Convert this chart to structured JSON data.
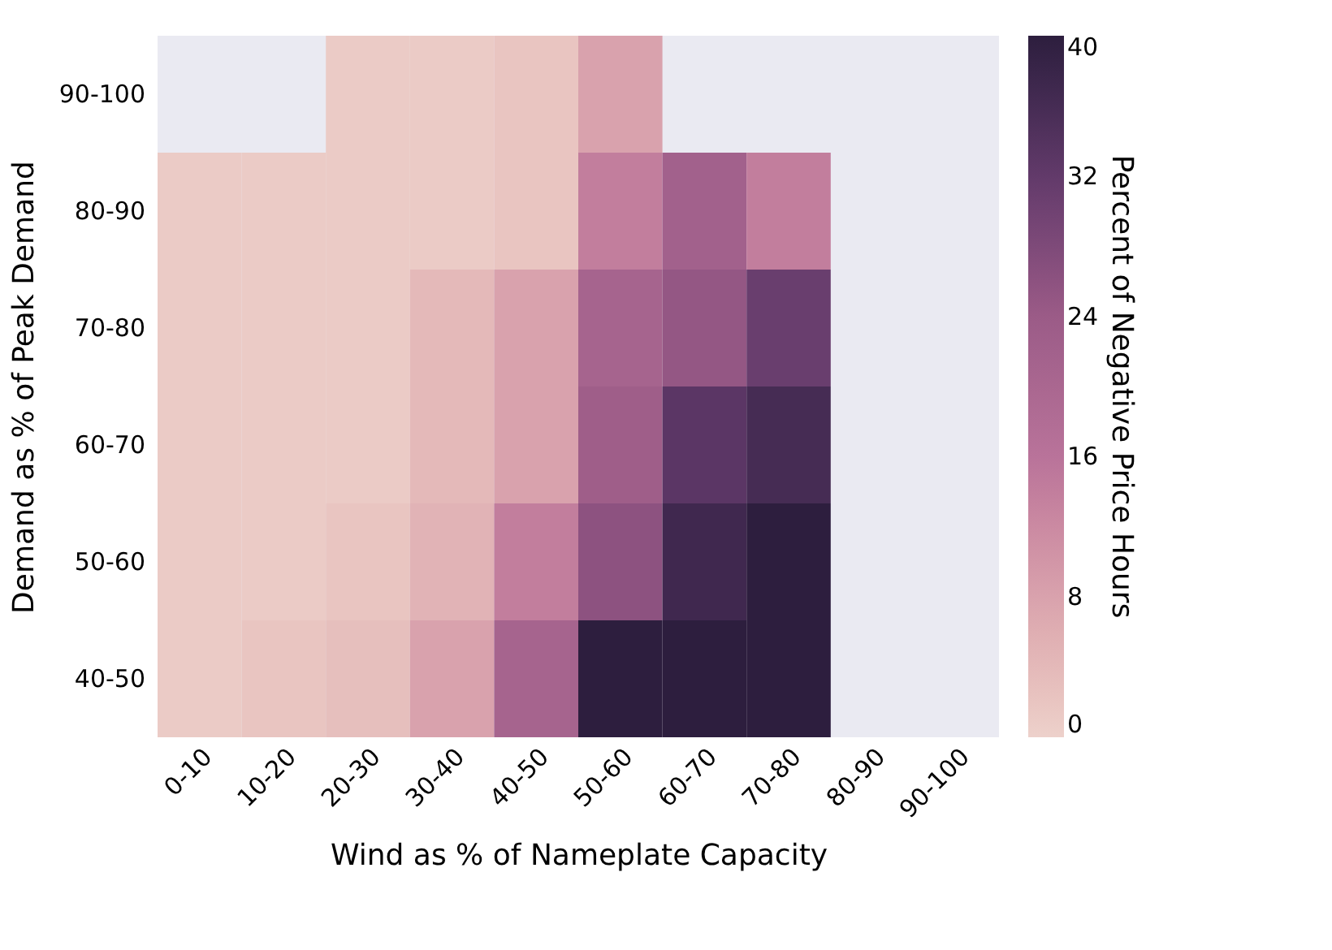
{
  "chart_data": {
    "type": "heatmap",
    "xlabel": "Wind as % of Nameplate Capacity",
    "ylabel": "Demand as % of Peak Demand",
    "clabel": "Percent of Negative Price Hours",
    "categories": [
      "0-10",
      "10-20",
      "20-30",
      "30-40",
      "40-50",
      "50-60",
      "60-70",
      "70-80",
      "80-90",
      "90-100"
    ],
    "y_categories": [
      "90-100",
      "80-90",
      "70-80",
      "60-70",
      "50-60",
      "40-50"
    ],
    "cells": [
      [
        null,
        null,
        1,
        1,
        2,
        8,
        null,
        null,
        null,
        null
      ],
      [
        1,
        1,
        1,
        1,
        2,
        14,
        22,
        14,
        null,
        null
      ],
      [
        1,
        1,
        1,
        4,
        8,
        21,
        25,
        31,
        null,
        null
      ],
      [
        1,
        1,
        1,
        4,
        8,
        23,
        33,
        36,
        null,
        null
      ],
      [
        1,
        1,
        2,
        5,
        14,
        26,
        37,
        40,
        null,
        null
      ],
      [
        1,
        2,
        3,
        8,
        21,
        40,
        40,
        40,
        null,
        null
      ]
    ],
    "clim": [
      0,
      40
    ],
    "cticks": [
      0,
      8,
      16,
      24,
      32,
      40
    ]
  }
}
